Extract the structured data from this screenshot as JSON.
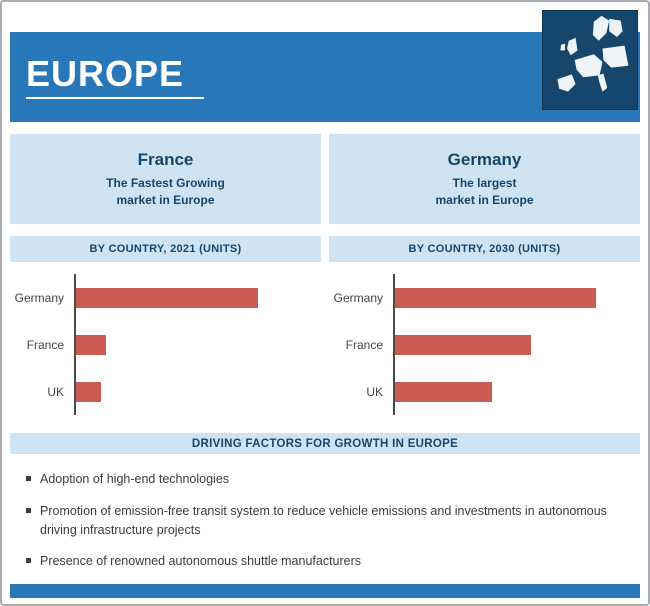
{
  "header": {
    "title": "EUROPE",
    "map_icon": "europe-map-icon"
  },
  "cards": [
    {
      "title": "France",
      "line1": "The Fastest Growing",
      "line2": "market in Europe"
    },
    {
      "title": "Germany",
      "line1": "The largest",
      "line2": "market in Europe"
    }
  ],
  "chart_data": [
    {
      "type": "bar",
      "orientation": "horizontal",
      "title": "BY COUNTRY, 2021 (UNITS)",
      "categories": [
        "Germany",
        "France",
        "UK"
      ],
      "values": [
        79,
        13,
        11
      ],
      "value_note": "no numeric axis shown; values estimated as percent of plot width",
      "bar_color": "#cd5a52",
      "grid": false,
      "legend": false
    },
    {
      "type": "bar",
      "orientation": "horizontal",
      "title": "BY COUNTRY, 2030 (UNITS)",
      "categories": [
        "Germany",
        "France",
        "UK"
      ],
      "values": [
        87,
        59,
        42
      ],
      "value_note": "no numeric axis shown; values estimated as percent of plot width",
      "bar_color": "#cd5a52",
      "grid": false,
      "legend": false
    }
  ],
  "driving_factors": {
    "title": "DRIVING FACTORS FOR GROWTH IN EUROPE",
    "items": [
      "Adoption of high-end technologies",
      "Promotion of emission-free transit system to reduce vehicle emissions and investments in autonomous driving infrastructure projects",
      "Presence of renowned autonomous shuttle manufacturers"
    ]
  },
  "colors": {
    "header_blue": "#2878b9",
    "map_tile_navy": "#16466b",
    "panel_light_blue": "#cfe3f3",
    "bar_red": "#cd5a52",
    "heading_text_blue": "#17466b"
  }
}
